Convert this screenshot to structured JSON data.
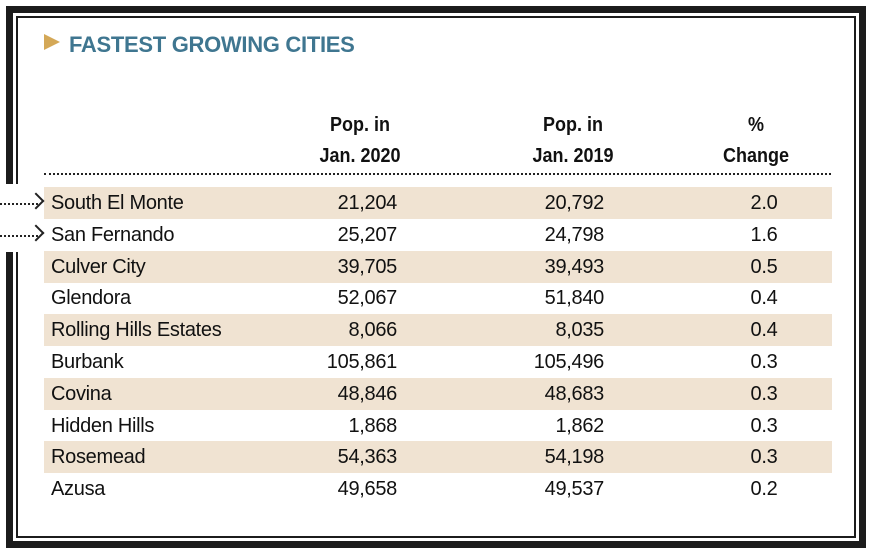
{
  "title": "FASTEST GROWING CITIES",
  "colors": {
    "title": "#3f7690",
    "accent": "#d4a857",
    "shade": "#f0e3d2"
  },
  "headers": [
    {
      "line1": "Pop. in",
      "line2": "Jan. 2020"
    },
    {
      "line1": "Pop. in",
      "line2": "Jan. 2019"
    },
    {
      "line1": "%",
      "line2": "Change"
    }
  ],
  "rows": [
    {
      "city": "South El Monte",
      "pop2020": "21,204",
      "pop2019": "20,792",
      "change": "2.0",
      "highlighted": true
    },
    {
      "city": "San Fernando",
      "pop2020": "25,207",
      "pop2019": "24,798",
      "change": "1.6",
      "highlighted": true
    },
    {
      "city": "Culver City",
      "pop2020": "39,705",
      "pop2019": "39,493",
      "change": "0.5"
    },
    {
      "city": "Glendora",
      "pop2020": "52,067",
      "pop2019": "51,840",
      "change": "0.4"
    },
    {
      "city": "Rolling Hills Estates",
      "pop2020": "8,066",
      "pop2019": "8,035",
      "change": "0.4"
    },
    {
      "city": "Burbank",
      "pop2020": "105,861",
      "pop2019": "105,496",
      "change": "0.3"
    },
    {
      "city": "Covina",
      "pop2020": "48,846",
      "pop2019": "48,683",
      "change": "0.3"
    },
    {
      "city": "Hidden Hills",
      "pop2020": "1,868",
      "pop2019": "1,862",
      "change": "0.3"
    },
    {
      "city": "Rosemead",
      "pop2020": "54,363",
      "pop2019": "54,198",
      "change": "0.3"
    },
    {
      "city": "Azusa",
      "pop2020": "49,658",
      "pop2019": "49,537",
      "change": "0.2"
    }
  ]
}
